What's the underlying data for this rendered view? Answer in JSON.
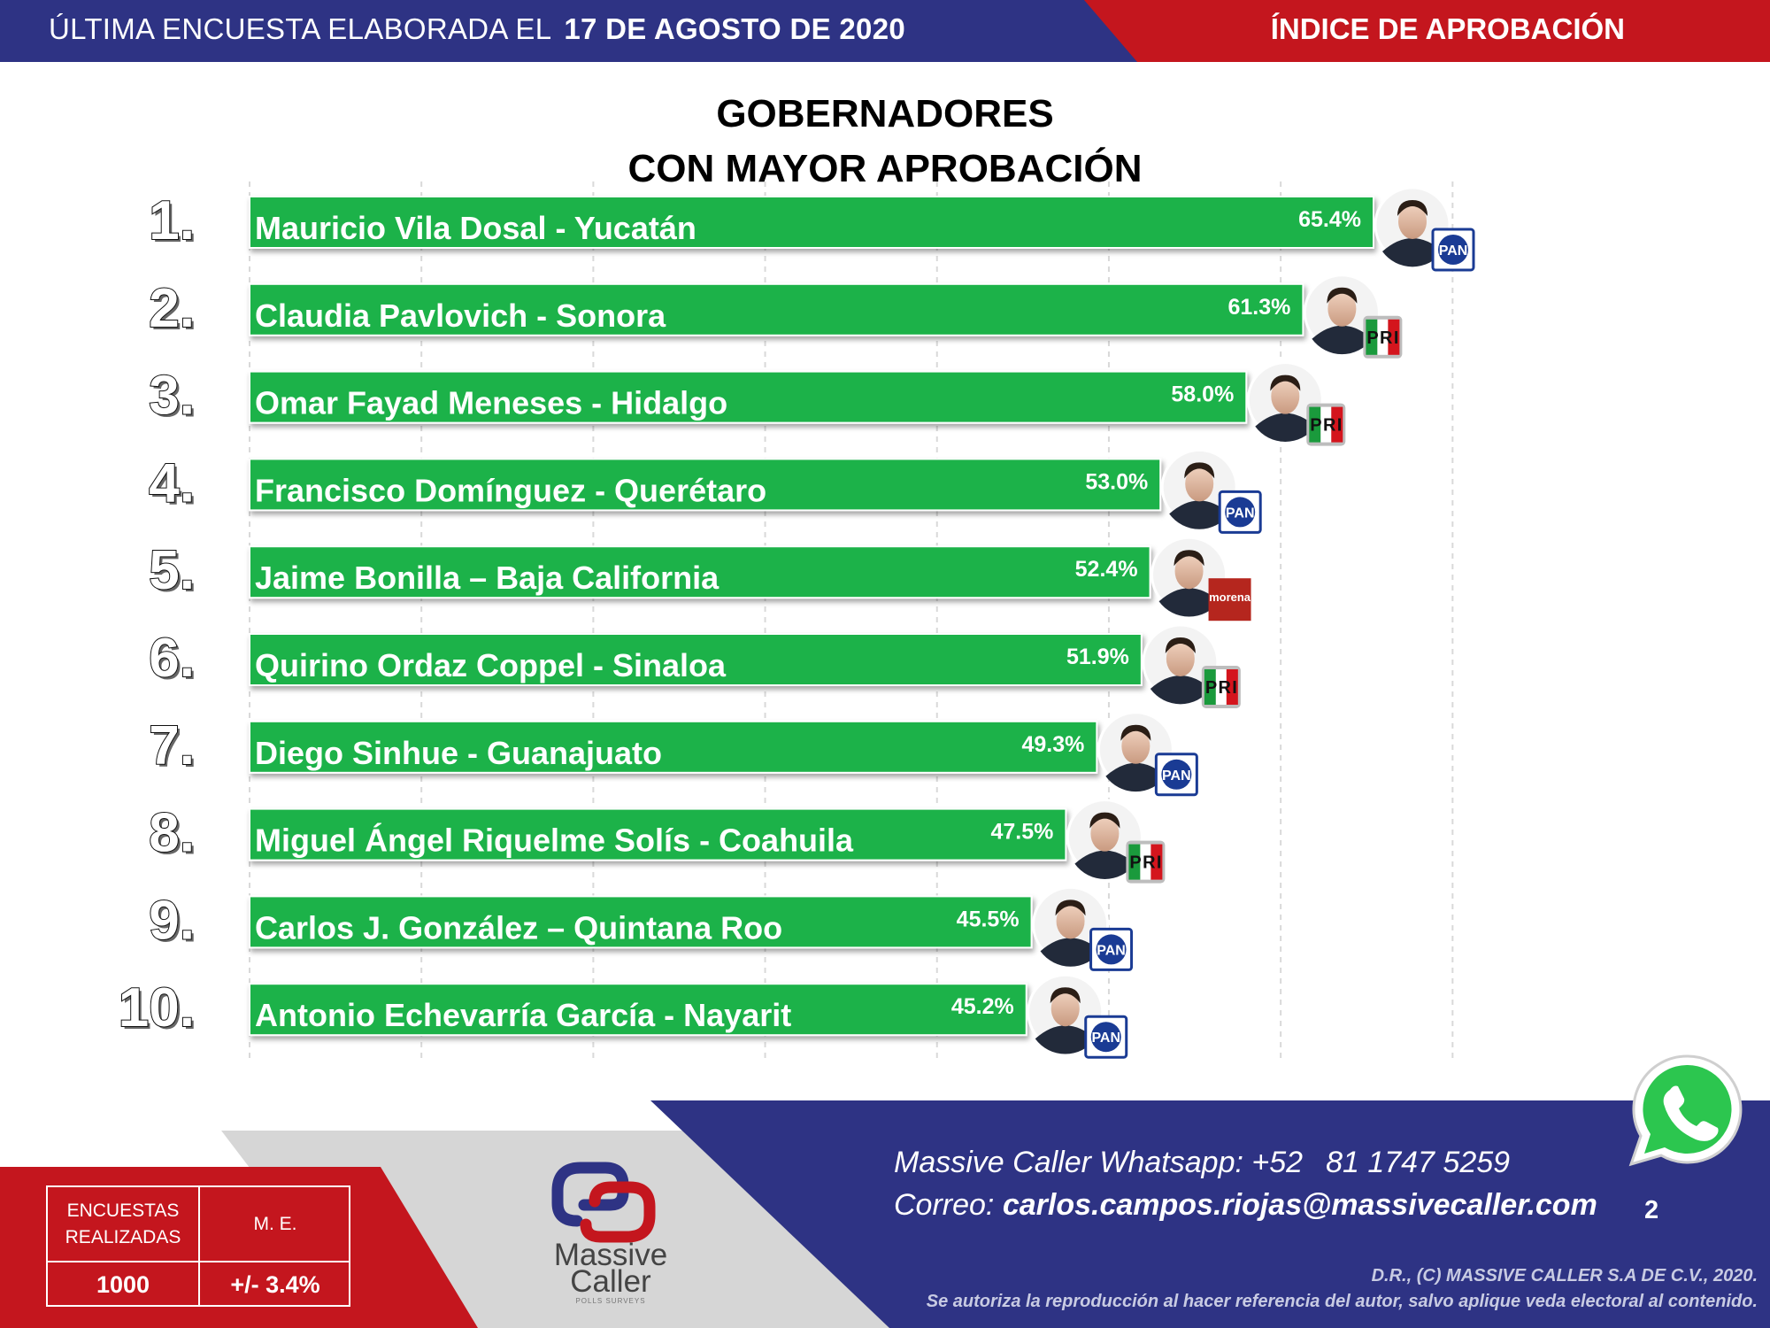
{
  "header": {
    "survey_text": "ÚLTIMA ENCUESTA ELABORADA EL",
    "survey_date": "17 DE AGOSTO DE 2020",
    "section": "ÍNDICE DE APROBACIÓN",
    "blue_color": "#2e3384",
    "red_color": "#c4161e"
  },
  "chart_data": {
    "type": "bar",
    "title": "GOBERNADORES",
    "subtitle": "CON MAYOR APROBACIÓN",
    "orientation": "horizontal",
    "bar_color": "#1fb24a",
    "grid": true,
    "ranks": [
      "1.",
      "2.",
      "3.",
      "4.",
      "5.",
      "6.",
      "7.",
      "8.",
      "9.",
      "10."
    ],
    "categories": [
      "Mauricio Vila Dosal - Yucatán",
      "Claudia Pavlovich - Sonora",
      "Omar Fayad Meneses - Hidalgo",
      "Francisco Domínguez - Querétaro",
      "Jaime Bonilla – Baja California",
      "Quirino Ordaz Coppel - Sinaloa",
      "Diego Sinhue - Guanajuato",
      "Miguel Ángel Riquelme Solís - Coahuila",
      "Carlos J. González – Quintana Roo",
      "Antonio Echevarría García - Nayarit"
    ],
    "values": [
      65.4,
      61.3,
      58.0,
      53.0,
      52.4,
      51.9,
      49.3,
      47.5,
      45.5,
      45.2
    ],
    "value_labels": [
      "65.4%",
      "61.3%",
      "58.0%",
      "53.0%",
      "52.4%",
      "51.9%",
      "49.3%",
      "47.5%",
      "45.5%",
      "45.2%"
    ],
    "parties": [
      "PAN",
      "PRI",
      "PRI",
      "PAN",
      "morena",
      "PRI",
      "PAN",
      "PRI",
      "PAN",
      "PAN"
    ]
  },
  "stats": {
    "surveys_label": "ENCUESTAS REALIZADAS",
    "surveys_value": "1000",
    "me_label": "M. E.",
    "me_value": "+/- 3.4%"
  },
  "logo": {
    "word1": "Massive",
    "word2": "Caller",
    "tagline": "POLLS  SURVEYS"
  },
  "contact": {
    "whatsapp_label": "Massive Caller Whatsapp:",
    "whatsapp_code": "+52",
    "whatsapp_number": "81 1747 5259",
    "email_label": "Correo:",
    "email": "carlos.campos.riojas@massivecaller.com",
    "page_number": "2"
  },
  "legal": {
    "line1": "D.R., (C) MASSIVE CALLER S.A DE C.V., 2020.",
    "line2": "Se autoriza la reproducción al hacer referencia del autor, salvo aplique veda electoral al contenido."
  }
}
